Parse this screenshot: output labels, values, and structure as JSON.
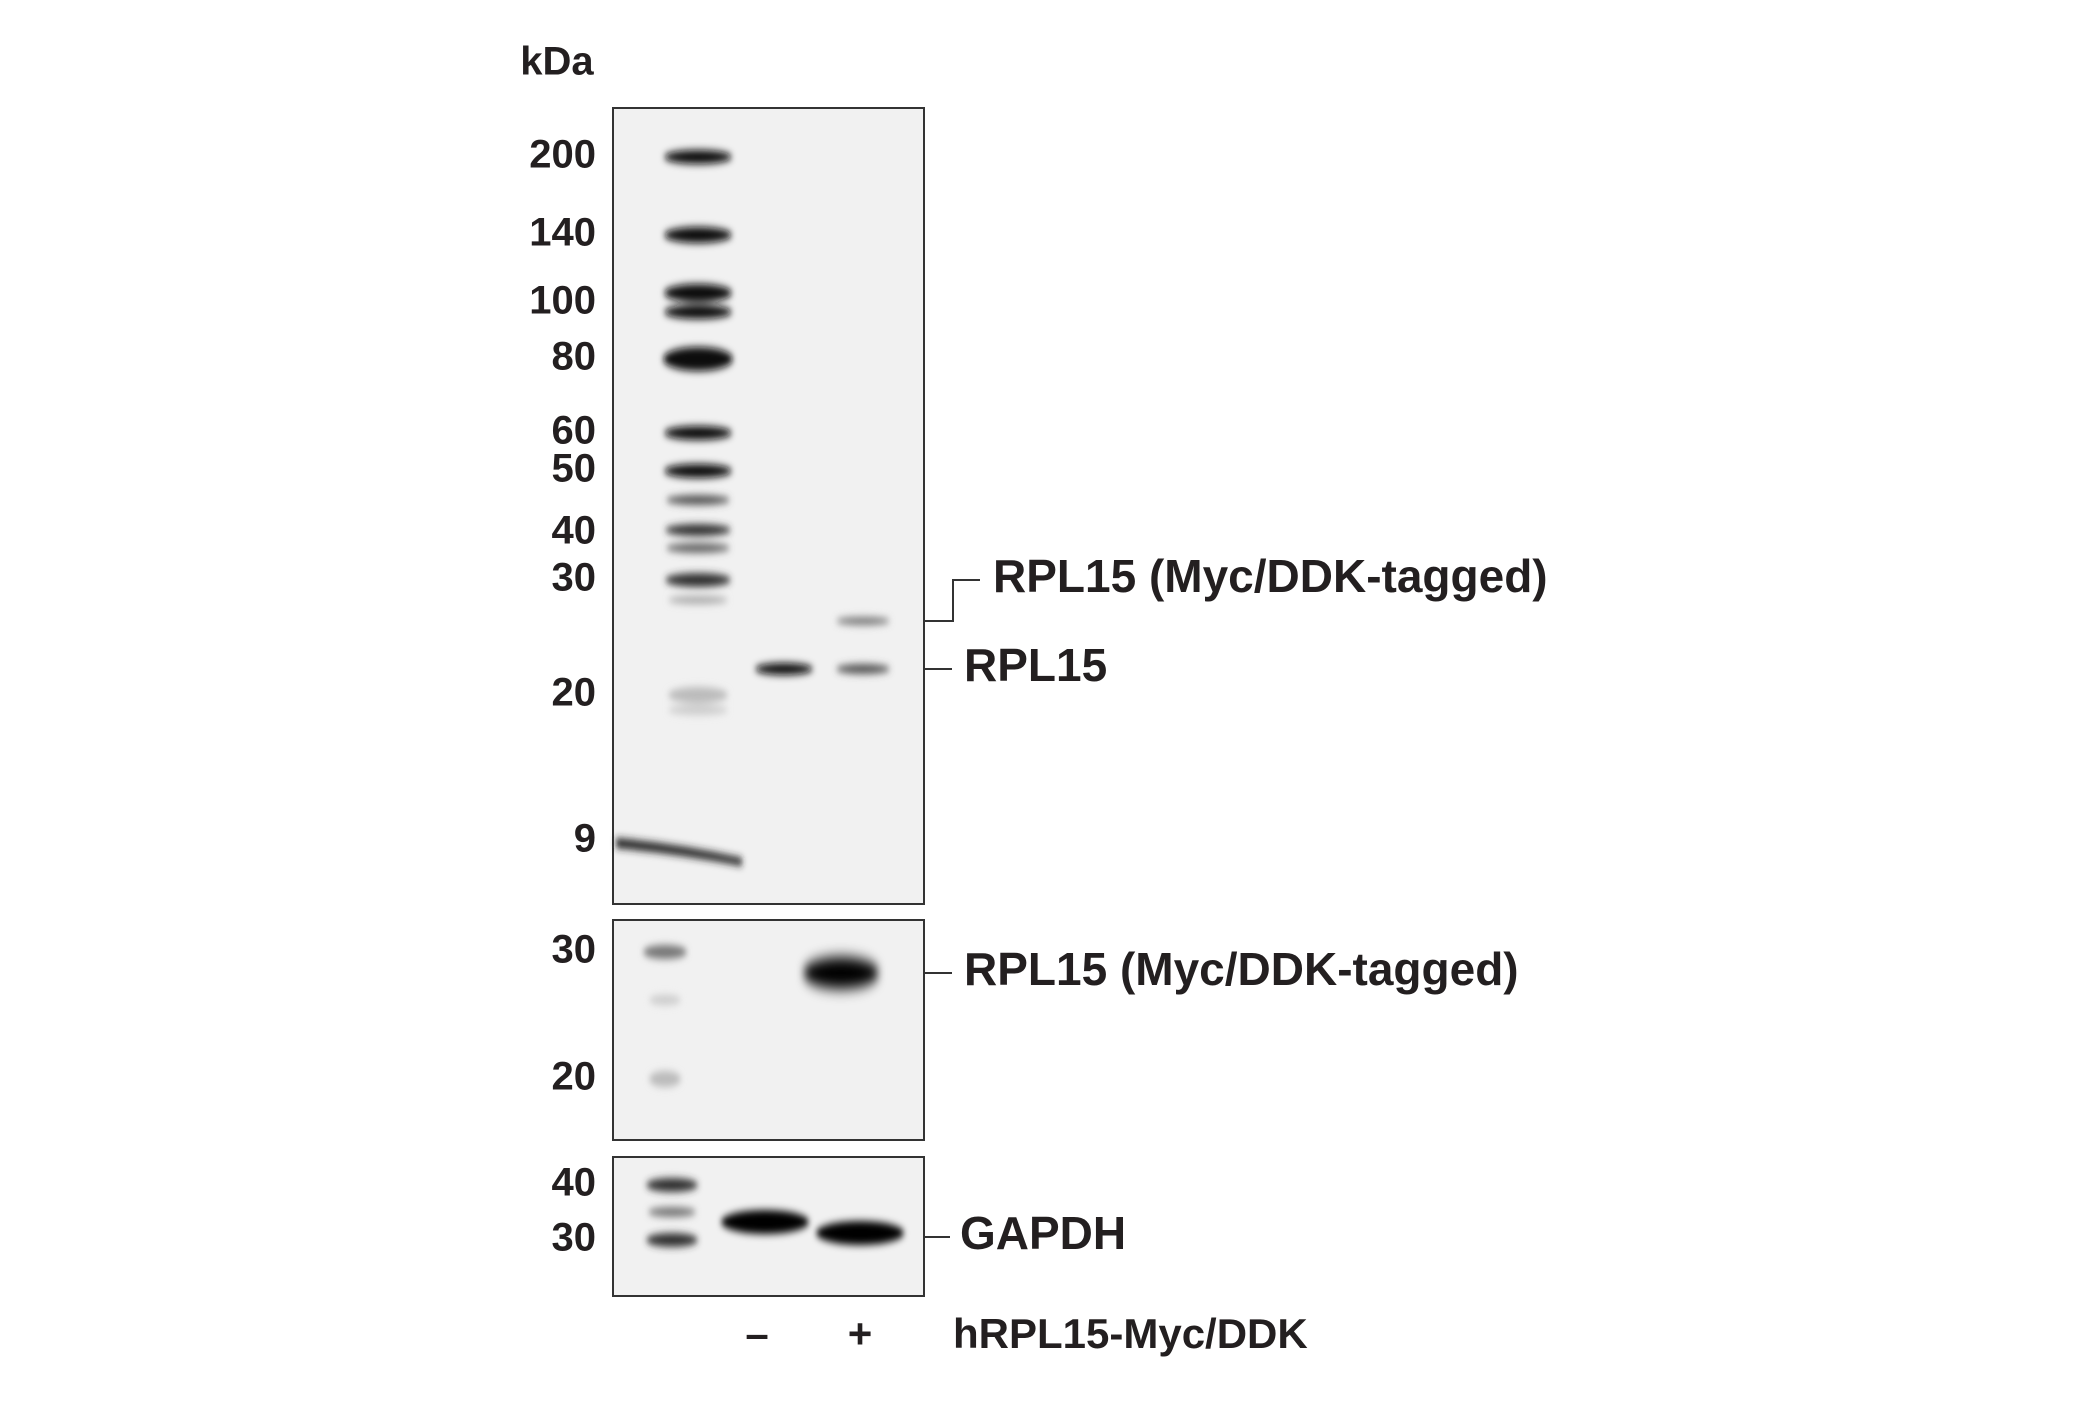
{
  "unit": "kDa",
  "panels": [
    {
      "markers": [
        "200",
        "140",
        "100",
        "80",
        "60",
        "50",
        "40",
        "30",
        "20",
        "9"
      ],
      "bands": [
        {
          "label": "RPL15 (Myc/DDK-tagged)"
        },
        {
          "label": "RPL15"
        }
      ]
    },
    {
      "markers": [
        "30",
        "20"
      ],
      "bands": [
        {
          "label": "RPL15 (Myc/DDK-tagged)"
        }
      ]
    },
    {
      "markers": [
        "40",
        "30"
      ],
      "bands": [
        {
          "label": "GAPDH"
        }
      ]
    }
  ],
  "lanes": [
    "–",
    "+"
  ],
  "treatment": "hRPL15-Myc/DDK"
}
